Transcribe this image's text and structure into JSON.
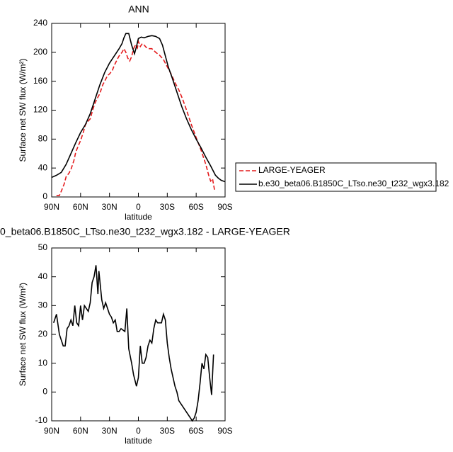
{
  "chart_data": [
    {
      "type": "line",
      "title": "ANN",
      "xlabel": "latitude",
      "ylabel": "Surface net SW flux (W/m²)",
      "xlim": [
        90,
        -90
      ],
      "xticks": [
        {
          "value": 90,
          "label": "90N"
        },
        {
          "value": 60,
          "label": "60N"
        },
        {
          "value": 30,
          "label": "30N"
        },
        0,
        {
          "value": -30,
          "label": "30S"
        },
        {
          "value": -60,
          "label": "60S"
        },
        {
          "value": -90,
          "label": "90S"
        }
      ],
      "ylim": [
        0,
        240
      ],
      "yticks": [
        0,
        40,
        80,
        120,
        160,
        200,
        240
      ],
      "series": [
        {
          "name": "LARGE-YEAGER",
          "color": "#e41a1c",
          "dashed": true,
          "x": [
            85,
            82,
            80,
            77,
            75,
            72,
            70,
            67,
            65,
            62,
            60,
            57,
            55,
            52,
            50,
            47,
            45,
            42,
            40,
            37,
            35,
            32,
            30,
            27,
            25,
            22,
            20,
            17,
            15,
            13,
            11,
            9,
            7,
            5,
            3,
            1,
            0,
            -2,
            -4,
            -6,
            -8,
            -10,
            -14,
            -18,
            -22,
            -26,
            -30,
            -34,
            -38,
            -42,
            -46,
            -50,
            -55,
            -60,
            -65,
            -70,
            -73,
            -75,
            -77,
            -79
          ],
          "values": [
            2,
            2,
            8,
            18,
            28,
            33,
            38,
            50,
            62,
            72,
            78,
            90,
            100,
            105,
            108,
            122,
            130,
            138,
            143,
            155,
            160,
            168,
            170,
            175,
            182,
            190,
            195,
            200,
            205,
            200,
            192,
            188,
            194,
            205,
            210,
            206,
            215,
            208,
            212,
            210,
            207,
            205,
            205,
            200,
            196,
            190,
            180,
            170,
            158,
            148,
            135,
            120,
            100,
            82,
            65,
            45,
            30,
            22,
            25,
            10
          ]
        },
        {
          "name": "b.e30_beta06.B1850C_LTso.ne30_t232_wgx3.182",
          "color": "#000000",
          "dashed": false,
          "x": [
            90,
            85,
            80,
            75,
            70,
            65,
            60,
            55,
            50,
            45,
            40,
            35,
            30,
            25,
            20,
            17,
            15,
            13,
            10,
            7,
            4,
            2,
            0,
            -3,
            -6,
            -10,
            -14,
            -18,
            -22,
            -25,
            -28,
            -31,
            -35,
            -40,
            -45,
            -50,
            -55,
            -60,
            -65,
            -70,
            -75,
            -80,
            -83,
            -86,
            -90
          ],
          "values": [
            27,
            30,
            34,
            45,
            60,
            75,
            89,
            100,
            115,
            135,
            155,
            172,
            185,
            195,
            205,
            212,
            220,
            226,
            226,
            210,
            198,
            208,
            219,
            221,
            220,
            222,
            223,
            222,
            219,
            210,
            195,
            180,
            165,
            145,
            125,
            108,
            93,
            80,
            68,
            55,
            43,
            30,
            26,
            23,
            21
          ]
        }
      ]
    },
    {
      "type": "line",
      "title": "0_beta06.B1850C_LTso.ne30_t232_wgx3.182 - LARGE-YEAGER",
      "xlabel": "latitude",
      "ylabel": "Surface net SW flux (W/m²)",
      "xlim": [
        90,
        -90
      ],
      "xticks": [
        {
          "value": 90,
          "label": "90N"
        },
        {
          "value": 60,
          "label": "60N"
        },
        {
          "value": 30,
          "label": "30N"
        },
        0,
        {
          "value": -30,
          "label": "30S"
        },
        {
          "value": -60,
          "label": "60S"
        },
        {
          "value": -90,
          "label": "90S"
        }
      ],
      "ylim": [
        -10,
        50
      ],
      "yticks": [
        -10,
        0,
        10,
        20,
        30,
        40,
        50
      ],
      "series": [
        {
          "color": "#000000",
          "dashed": false,
          "x": [
            88,
            85,
            82,
            78,
            76,
            74,
            72,
            70,
            68,
            66,
            64,
            62,
            60,
            58,
            56,
            54,
            52,
            50,
            48,
            46,
            44,
            42,
            41,
            38,
            36,
            34,
            30,
            28,
            26,
            24,
            22,
            20,
            18,
            14,
            12,
            10,
            7,
            5,
            2,
            0,
            -2,
            -4,
            -6,
            -8,
            -10,
            -12,
            -14,
            -16,
            -18,
            -20,
            -22,
            -24,
            -26,
            -28,
            -30,
            -32,
            -34,
            -38,
            -40,
            -42,
            -46,
            -50,
            -54,
            -56,
            -58,
            -60,
            -62,
            -64,
            -66,
            -68,
            -70,
            -72,
            -74,
            -76,
            -78
          ],
          "values": [
            24,
            27,
            20,
            16,
            16,
            22,
            23,
            25,
            23,
            30,
            24,
            23,
            30,
            25,
            30,
            29,
            28,
            31,
            38,
            40,
            44,
            34,
            42,
            32,
            29,
            31,
            27,
            26,
            24,
            25,
            21,
            21,
            22,
            21,
            29,
            15,
            10,
            6,
            2,
            5,
            16,
            10,
            10,
            12,
            16,
            18,
            17,
            22,
            25,
            24,
            24,
            24,
            27,
            25,
            17,
            12,
            8,
            2,
            0,
            -3,
            -5,
            -7,
            -9,
            -10,
            -9,
            -7,
            -3,
            3,
            10,
            8,
            13,
            12,
            5,
            -1,
            13
          ]
        }
      ]
    }
  ]
}
